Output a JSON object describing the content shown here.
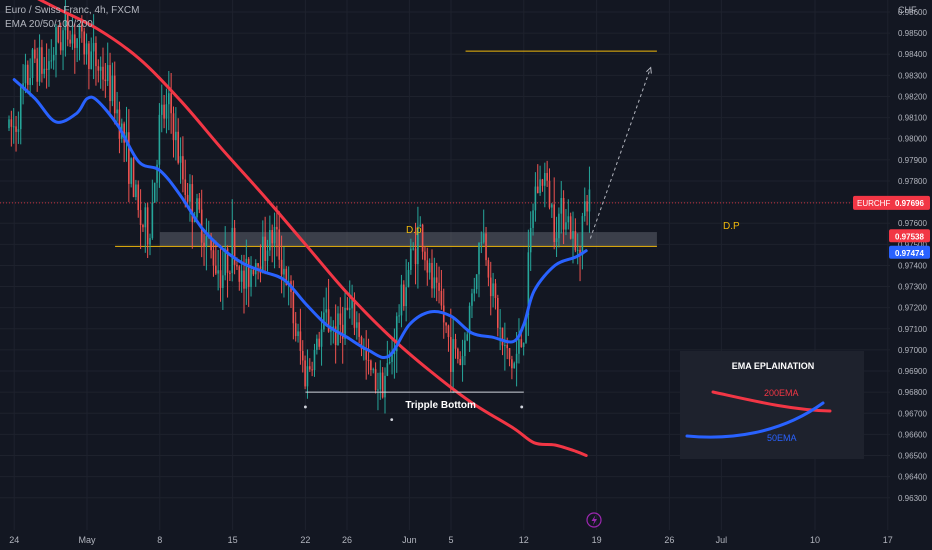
{
  "header": {
    "title": "Euro / Swiss Franc, 4h, FXCM",
    "indicators": "EMA 20/50/100/200"
  },
  "colors": {
    "background": "#131722",
    "bull": "#26a69a",
    "bear": "#ef5350",
    "ema200": "#f23645",
    "ema50": "#2962ff",
    "level": "#f0b90b",
    "zone": "#5d606b",
    "price_badge": "#f23645",
    "ema200_badge": "#f23645",
    "ema50_badge": "#2962ff"
  },
  "chart_data": {
    "type": "candlestick",
    "symbol": "EURCHF",
    "unit": "CHF",
    "timeframe": "4h",
    "ylim": [
      0.9625,
      0.9865
    ],
    "y_ticks": [
      "0.98600",
      "0.98500",
      "0.98400",
      "0.98300",
      "0.98200",
      "0.98100",
      "0.98000",
      "0.97900",
      "0.97800",
      "0.97700",
      "0.97600",
      "0.97500",
      "0.97400",
      "0.97300",
      "0.97200",
      "0.97100",
      "0.97000",
      "0.96900",
      "0.96800",
      "0.96700",
      "0.96600",
      "0.96500",
      "0.96400",
      "0.96300"
    ],
    "x_ticks": [
      {
        "label": "24",
        "day": -7
      },
      {
        "label": "May",
        "day": 0
      },
      {
        "label": "8",
        "day": 7
      },
      {
        "label": "15",
        "day": 14
      },
      {
        "label": "22",
        "day": 21
      },
      {
        "label": "26",
        "day": 25
      },
      {
        "label": "Jun",
        "day": 31
      },
      {
        "label": "5",
        "day": 35
      },
      {
        "label": "12",
        "day": 42
      },
      {
        "label": "19",
        "day": 49
      },
      {
        "label": "26",
        "day": 56
      },
      {
        "label": "Jul",
        "day": 61
      },
      {
        "label": "10",
        "day": 70
      },
      {
        "label": "17",
        "day": 77
      }
    ],
    "price_path": [
      [
        -7,
        0.9805
      ],
      [
        -6,
        0.9825
      ],
      [
        -5,
        0.9838
      ],
      [
        -4,
        0.9832
      ],
      [
        -3,
        0.9845
      ],
      [
        -2,
        0.9852
      ],
      [
        -1,
        0.9848
      ],
      [
        0,
        0.9842
      ],
      [
        1,
        0.9835
      ],
      [
        2,
        0.9828
      ],
      [
        3,
        0.9812
      ],
      [
        4,
        0.979
      ],
      [
        5,
        0.9762
      ],
      [
        6,
        0.9755
      ],
      [
        7,
        0.9808
      ],
      [
        8,
        0.9815
      ],
      [
        9,
        0.9785
      ],
      [
        10,
        0.977
      ],
      [
        11,
        0.976
      ],
      [
        12,
        0.9745
      ],
      [
        13,
        0.9736
      ],
      [
        14,
        0.975
      ],
      [
        15,
        0.973
      ],
      [
        16,
        0.9742
      ],
      [
        17,
        0.9748
      ],
      [
        18,
        0.9755
      ],
      [
        19,
        0.9738
      ],
      [
        20,
        0.971
      ],
      [
        21,
        0.9688
      ],
      [
        22,
        0.97
      ],
      [
        23,
        0.9715
      ],
      [
        24,
        0.9708
      ],
      [
        25,
        0.9718
      ],
      [
        26,
        0.9712
      ],
      [
        27,
        0.969
      ],
      [
        28,
        0.9685
      ],
      [
        29,
        0.969
      ],
      [
        30,
        0.9718
      ],
      [
        31,
        0.974
      ],
      [
        32,
        0.9758
      ],
      [
        33,
        0.9733
      ],
      [
        34,
        0.972
      ],
      [
        35,
        0.97
      ],
      [
        36,
        0.9695
      ],
      [
        37,
        0.9725
      ],
      [
        38,
        0.9758
      ],
      [
        39,
        0.9728
      ],
      [
        40,
        0.97
      ],
      [
        41,
        0.9692
      ],
      [
        42,
        0.9708
      ],
      [
        43,
        0.9775
      ],
      [
        44,
        0.9782
      ],
      [
        45,
        0.976
      ],
      [
        46,
        0.9768
      ],
      [
        47,
        0.9745
      ],
      [
        48,
        0.977
      ]
    ],
    "ema200_path": [
      [
        -7,
        0.9872
      ],
      [
        -3,
        0.9862
      ],
      [
        1,
        0.9852
      ],
      [
        5,
        0.9838
      ],
      [
        9,
        0.9818
      ],
      [
        13,
        0.9795
      ],
      [
        17,
        0.9773
      ],
      [
        21,
        0.975
      ],
      [
        25,
        0.9727
      ],
      [
        29,
        0.9707
      ],
      [
        33,
        0.969
      ],
      [
        37,
        0.9675
      ],
      [
        41,
        0.9663
      ],
      [
        43,
        0.9656
      ],
      [
        45,
        0.9655
      ],
      [
        47,
        0.9652
      ],
      [
        48,
        0.965
      ]
    ],
    "ema50_path": [
      [
        -7,
        0.9828
      ],
      [
        -5,
        0.9819
      ],
      [
        -3,
        0.9808
      ],
      [
        -1,
        0.9812
      ],
      [
        0,
        0.9819
      ],
      [
        1,
        0.9818
      ],
      [
        3,
        0.9806
      ],
      [
        5,
        0.9789
      ],
      [
        7,
        0.9785
      ],
      [
        9,
        0.9773
      ],
      [
        11,
        0.9758
      ],
      [
        13,
        0.9748
      ],
      [
        15,
        0.9741
      ],
      [
        17,
        0.9737
      ],
      [
        19,
        0.9733
      ],
      [
        21,
        0.9722
      ],
      [
        23,
        0.9712
      ],
      [
        25,
        0.9706
      ],
      [
        27,
        0.97
      ],
      [
        29,
        0.9697
      ],
      [
        31,
        0.9712
      ],
      [
        33,
        0.9718
      ],
      [
        35,
        0.9716
      ],
      [
        37,
        0.9708
      ],
      [
        39,
        0.9706
      ],
      [
        41,
        0.9704
      ],
      [
        42,
        0.9712
      ],
      [
        43,
        0.9728
      ],
      [
        45,
        0.974
      ],
      [
        47,
        0.9744
      ],
      [
        48,
        0.9747
      ]
    ],
    "annotations": {
      "resistance_line": {
        "price": 0.98415,
        "from_day": 36.4,
        "to_day": 54.8,
        "color": "#f0b90b"
      },
      "zone_top": 0.97558,
      "zone_bottom": 0.9749,
      "zone_from_day": 7,
      "zone_to_day": 54.8,
      "zone_level_from_day": 2.7,
      "zone_label_left": "D.p",
      "zone_label_right": "D.P",
      "tripple_bottom": {
        "price": 0.968,
        "from_day": 21,
        "to_day": 42,
        "label": "Tripple Bottom"
      },
      "bottom_dots": [
        [
          21,
          0.9673
        ],
        [
          29.3,
          0.9667
        ],
        [
          41.8,
          0.9673
        ]
      ],
      "projection": {
        "from": [
          48.4,
          0.97528
        ],
        "to": [
          54.2,
          0.98337
        ]
      },
      "current_price_line": 0.97696
    },
    "price_badges": [
      {
        "symbol": "EURCHF",
        "value": "0.97696",
        "price": 0.97696,
        "color": "#f23645"
      },
      {
        "value": "0.97538",
        "price": 0.97538,
        "color": "#f23645"
      },
      {
        "value": "0.97474",
        "price": 0.97474,
        "color": "#2962ff"
      }
    ],
    "legend_box": {
      "title": "EMA EPLAINATION",
      "ema200_label": "200EMA",
      "ema50_label": "50EMA"
    }
  }
}
